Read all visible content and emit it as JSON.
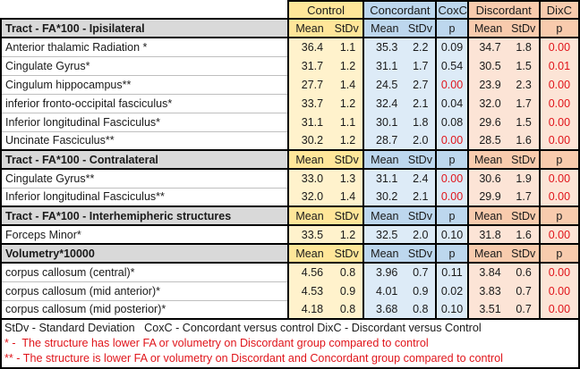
{
  "colors": {
    "control_header": "#FFE699",
    "control_data": "#FFF2CC",
    "concordant_header": "#BDD7EE",
    "concordant_data": "#DDEBF7",
    "discordant_header": "#F8CBAD",
    "discordant_data": "#FCE4D6",
    "section_bg": "#D9D9D9",
    "red_text": "#E0151B",
    "border": "#000000"
  },
  "chart_data": {
    "type": "table",
    "corner_label": "",
    "column_groups": [
      {
        "label": "Control",
        "subcolumns": [
          "Mean",
          "StDv"
        ]
      },
      {
        "label": "Concordant",
        "subcolumns": [
          "Mean",
          "StDv"
        ]
      },
      {
        "label": "CoxC",
        "subcolumns": [
          "p"
        ]
      },
      {
        "label": "Discordant",
        "subcolumns": [
          "Mean",
          "StDv"
        ]
      },
      {
        "label": "DixC",
        "subcolumns": [
          "p"
        ]
      }
    ],
    "subheader": [
      "Mean",
      "StDv",
      "Mean",
      "StDv",
      "p",
      "Mean",
      "StDv",
      "p"
    ],
    "sections": [
      {
        "title": "Tract - FA*100 - Ipisilateral",
        "rows": [
          {
            "label": "Anterior thalamic Radiation *",
            "values": [
              "36.4",
              "1.1",
              "35.3",
              "2.2",
              "0.09",
              "34.7",
              "1.8",
              "0.00"
            ],
            "red": [
              7
            ]
          },
          {
            "label": "Cingulate Gyrus*",
            "values": [
              "31.7",
              "1.2",
              "31.1",
              "1.7",
              "0.54",
              "30.5",
              "1.5",
              "0.01"
            ],
            "red": [
              7
            ]
          },
          {
            "label": "Cingulum hippocampus**",
            "values": [
              "27.7",
              "1.4",
              "24.5",
              "2.7",
              "0.00",
              "23.9",
              "2.3",
              "0.00"
            ],
            "red": [
              4,
              7
            ]
          },
          {
            "label": "inferior fronto-occipital fasciculus*",
            "values": [
              "33.7",
              "1.2",
              "32.4",
              "2.1",
              "0.04",
              "32.0",
              "1.7",
              "0.00"
            ],
            "red": [
              7
            ]
          },
          {
            "label": "Inferior longitudinal Fasciculus*",
            "values": [
              "31.1",
              "1.1",
              "30.1",
              "1.8",
              "0.08",
              "29.6",
              "1.5",
              "0.00"
            ],
            "red": [
              7
            ]
          },
          {
            "label": "Uncinate Fasciculus**",
            "values": [
              "30.2",
              "1.2",
              "28.7",
              "2.0",
              "0.00",
              "28.5",
              "1.6",
              "0.00"
            ],
            "red": [
              4,
              7
            ]
          }
        ]
      },
      {
        "title": "Tract - FA*100 - Contralateral",
        "rows": [
          {
            "label": "Cingulate Gyrus**",
            "values": [
              "33.0",
              "1.3",
              "31.1",
              "2.4",
              "0.00",
              "30.6",
              "1.9",
              "0.00"
            ],
            "red": [
              4,
              7
            ]
          },
          {
            "label": "Inferior longitudinal Fasciculus**",
            "values": [
              "32.0",
              "1.4",
              "30.2",
              "2.1",
              "0.00",
              "29.9",
              "1.7",
              "0.00"
            ],
            "red": [
              4,
              7
            ]
          }
        ]
      },
      {
        "title": "Tract - FA*100 - Interhemipheric structures",
        "rows": [
          {
            "label": "Forceps Minor*",
            "values": [
              "33.5",
              "1.2",
              "32.5",
              "2.0",
              "0.10",
              "31.8",
              "1.6",
              "0.00"
            ],
            "red": [
              7
            ]
          }
        ]
      },
      {
        "title": "Volumetry*10000",
        "rows": [
          {
            "label": "corpus callosum (central)*",
            "values": [
              "4.56",
              "0.8",
              "3.96",
              "0.7",
              "0.11",
              "3.84",
              "0.6",
              "0.00"
            ],
            "red": [
              7
            ]
          },
          {
            "label": "corpus callosum (mid anterior)*",
            "values": [
              "4.53",
              "0.9",
              "4.01",
              "0.9",
              "0.02",
              "3.83",
              "0.7",
              "0.00"
            ],
            "red": [
              7
            ]
          },
          {
            "label": "corpus callosum (mid posterior)*",
            "values": [
              "4.18",
              "0.8",
              "3.68",
              "0.8",
              "0.10",
              "3.51",
              "0.7",
              "0.00"
            ],
            "red": [
              7
            ]
          }
        ]
      }
    ],
    "footnotes": [
      {
        "text": "StDv - Standard Deviation   CoxC - Concordant versus control DixC - Discordant versus Control",
        "color": "black"
      },
      {
        "text": "* -  The structure has lower FA or volumetry on Discordant group compared to control",
        "color": "red"
      },
      {
        "text": "** - The structure is lower FA or volumetry on Discordant and Concordant group compared to control",
        "color": "red"
      }
    ]
  }
}
